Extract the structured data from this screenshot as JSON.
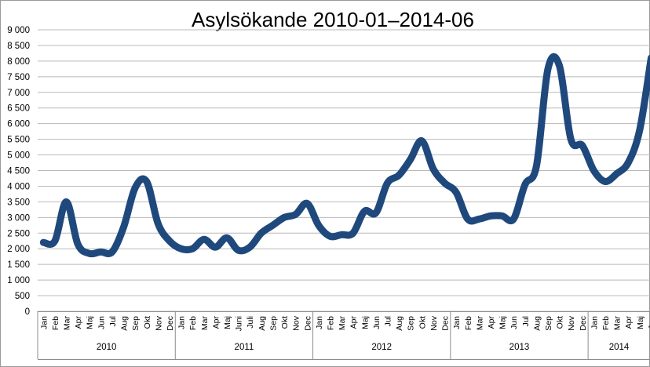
{
  "chart_data": {
    "type": "line",
    "title": "Asylsökande 2010-01–2014-06",
    "xlabel": "",
    "ylabel": "",
    "ylim": [
      0,
      9000
    ],
    "yticks": [
      0,
      500,
      1000,
      1500,
      2000,
      2500,
      3000,
      3500,
      4000,
      4500,
      5000,
      5500,
      6000,
      6500,
      7000,
      7500,
      8000,
      8500,
      9000
    ],
    "ytick_labels": [
      "0",
      "500",
      "1 000",
      "1 500",
      "2 000",
      "2 500",
      "3 000",
      "3 500",
      "4 000",
      "4 500",
      "5 000",
      "5 500",
      "6 000",
      "6 500",
      "7 000",
      "7 500",
      "8 000",
      "8 500",
      "9 000"
    ],
    "grid": true,
    "legend": "none",
    "color": "#1f497d",
    "groups": [
      {
        "label": "2010",
        "months": [
          "Jan",
          "Feb",
          "Mar",
          "Apr",
          "Maj",
          "Jun",
          "Jul",
          "Aug",
          "Sep",
          "Okt",
          "Nov",
          "Dec"
        ]
      },
      {
        "label": "2011",
        "months": [
          "Jan",
          "Feb",
          "Mar",
          "Apr",
          "Maj",
          "Juni",
          "Juli",
          "Aug",
          "Sep",
          "Okt",
          "Nov",
          "Dec"
        ]
      },
      {
        "label": "2012",
        "months": [
          "Jan",
          "Feb",
          "Mar",
          "Apr",
          "Maj",
          "Jun",
          "Jul",
          "Aug",
          "Sep",
          "Okt",
          "Nov",
          "Dec"
        ]
      },
      {
        "label": "2013",
        "months": [
          "Jan",
          "Feb",
          "Mar",
          "Apr",
          "Maj",
          "Jun",
          "Jul",
          "Aug",
          "Sep",
          "Okt",
          "Nov",
          "Dec"
        ]
      },
      {
        "label": "2014",
        "months": [
          "Jan",
          "Feb",
          "Mar",
          "Apr",
          "Maj",
          "Jun"
        ]
      }
    ],
    "x": [
      "2010-01",
      "2010-02",
      "2010-03",
      "2010-04",
      "2010-05",
      "2010-06",
      "2010-07",
      "2010-08",
      "2010-09",
      "2010-10",
      "2010-11",
      "2010-12",
      "2011-01",
      "2011-02",
      "2011-03",
      "2011-04",
      "2011-05",
      "2011-06",
      "2011-07",
      "2011-08",
      "2011-09",
      "2011-10",
      "2011-11",
      "2011-12",
      "2012-01",
      "2012-02",
      "2012-03",
      "2012-04",
      "2012-05",
      "2012-06",
      "2012-07",
      "2012-08",
      "2012-09",
      "2012-10",
      "2012-11",
      "2012-12",
      "2013-01",
      "2013-02",
      "2013-03",
      "2013-04",
      "2013-05",
      "2013-06",
      "2013-07",
      "2013-08",
      "2013-09",
      "2013-10",
      "2013-11",
      "2013-12",
      "2014-01",
      "2014-02",
      "2014-03",
      "2014-04",
      "2014-05",
      "2014-06"
    ],
    "series": [
      {
        "values": [
          2200,
          2250,
          3500,
          2150,
          1850,
          1900,
          1900,
          2700,
          3950,
          4150,
          2800,
          2250,
          2000,
          2000,
          2300,
          2050,
          2350,
          1950,
          2050,
          2500,
          2750,
          3000,
          3100,
          3450,
          2750,
          2400,
          2450,
          2500,
          3200,
          3150,
          4100,
          4350,
          4850,
          5450,
          4550,
          4100,
          3800,
          2950,
          2950,
          3050,
          3050,
          2950,
          4050,
          4650,
          7750,
          7850,
          5500,
          5300,
          4500,
          4150,
          4400,
          4750,
          5800,
          8100
        ]
      }
    ]
  }
}
